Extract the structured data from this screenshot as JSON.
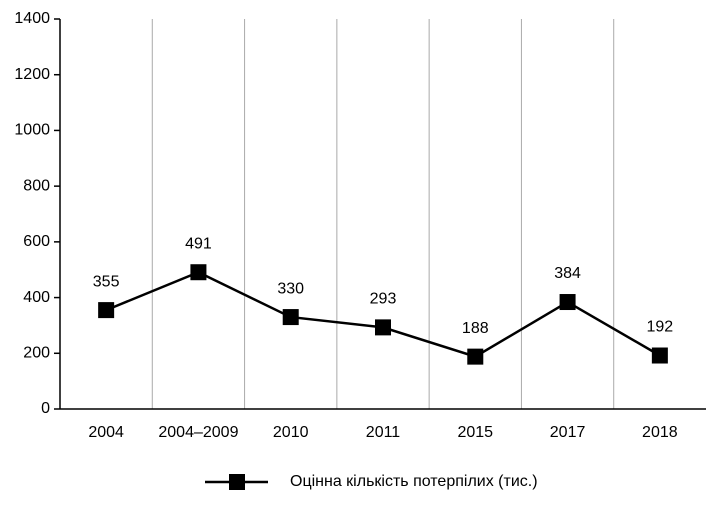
{
  "chart_data": {
    "type": "line",
    "categories": [
      "2004",
      "2004–2009",
      "2010",
      "2011",
      "2015",
      "2017",
      "2018"
    ],
    "series": [
      {
        "name": "Оцінна кількість потерпілих (тис.)",
        "color": "#000000",
        "values": [
          355,
          491,
          330,
          293,
          188,
          384,
          192
        ]
      }
    ],
    "ylim": [
      0,
      1400
    ],
    "yticks": [
      0,
      200,
      400,
      600,
      800,
      1000,
      1200,
      1400
    ],
    "grid": true,
    "legend": "bottom"
  }
}
